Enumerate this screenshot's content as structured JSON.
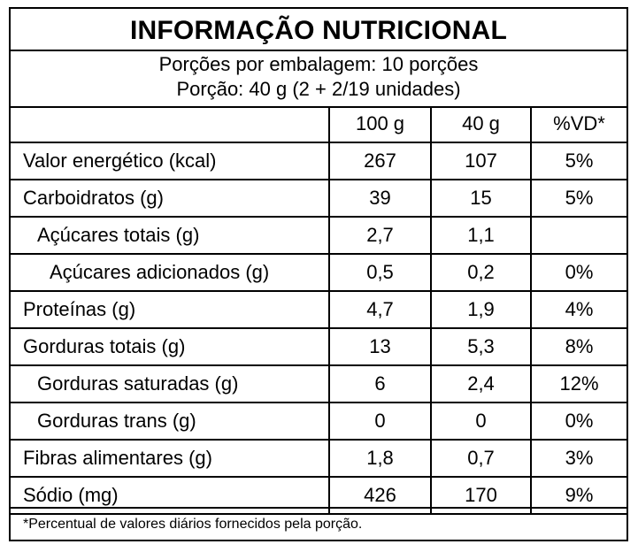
{
  "label": {
    "title": "INFORMAÇÃO  NUTRICIONAL",
    "servings_per_package": "Porções por embalagem: 10 porções",
    "serving_size": "Porção: 40 g (2 + 2/19 unidades)"
  },
  "columns": {
    "name": "",
    "per_100g": "100 g",
    "per_serving": "40 g",
    "daily_value": "%VD*"
  },
  "rows": [
    {
      "name": "Valor energético (kcal)",
      "per_100g": "267",
      "per_serving": "107",
      "daily_value": "5%"
    },
    {
      "name": "Carboidratos (g)",
      "per_100g": "39",
      "per_serving": "15",
      "daily_value": "5%"
    },
    {
      "name": "Açúcares totais (g)",
      "per_100g": "2,7",
      "per_serving": "1,1",
      "daily_value": ""
    },
    {
      "name": "Açúcares adicionados (g)",
      "per_100g": "0,5",
      "per_serving": "0,2",
      "daily_value": "0%"
    },
    {
      "name": "Proteínas (g)",
      "per_100g": "4,7",
      "per_serving": "1,9",
      "daily_value": "4%"
    },
    {
      "name": "Gorduras totais (g)",
      "per_100g": "13",
      "per_serving": "5,3",
      "daily_value": "8%"
    },
    {
      "name": "Gorduras saturadas (g)",
      "per_100g": "6",
      "per_serving": "2,4",
      "daily_value": "12%"
    },
    {
      "name": "Gorduras trans (g)",
      "per_100g": "0",
      "per_serving": "0",
      "daily_value": "0%"
    },
    {
      "name": "Fibras alimentares (g)",
      "per_100g": "1,8",
      "per_serving": "0,7",
      "daily_value": "3%"
    },
    {
      "name": "Sódio (mg)",
      "per_100g": "426",
      "per_serving": "170",
      "daily_value": "9%"
    }
  ],
  "footnote": "*Percentual  de valores diários fornecidos pela porção."
}
